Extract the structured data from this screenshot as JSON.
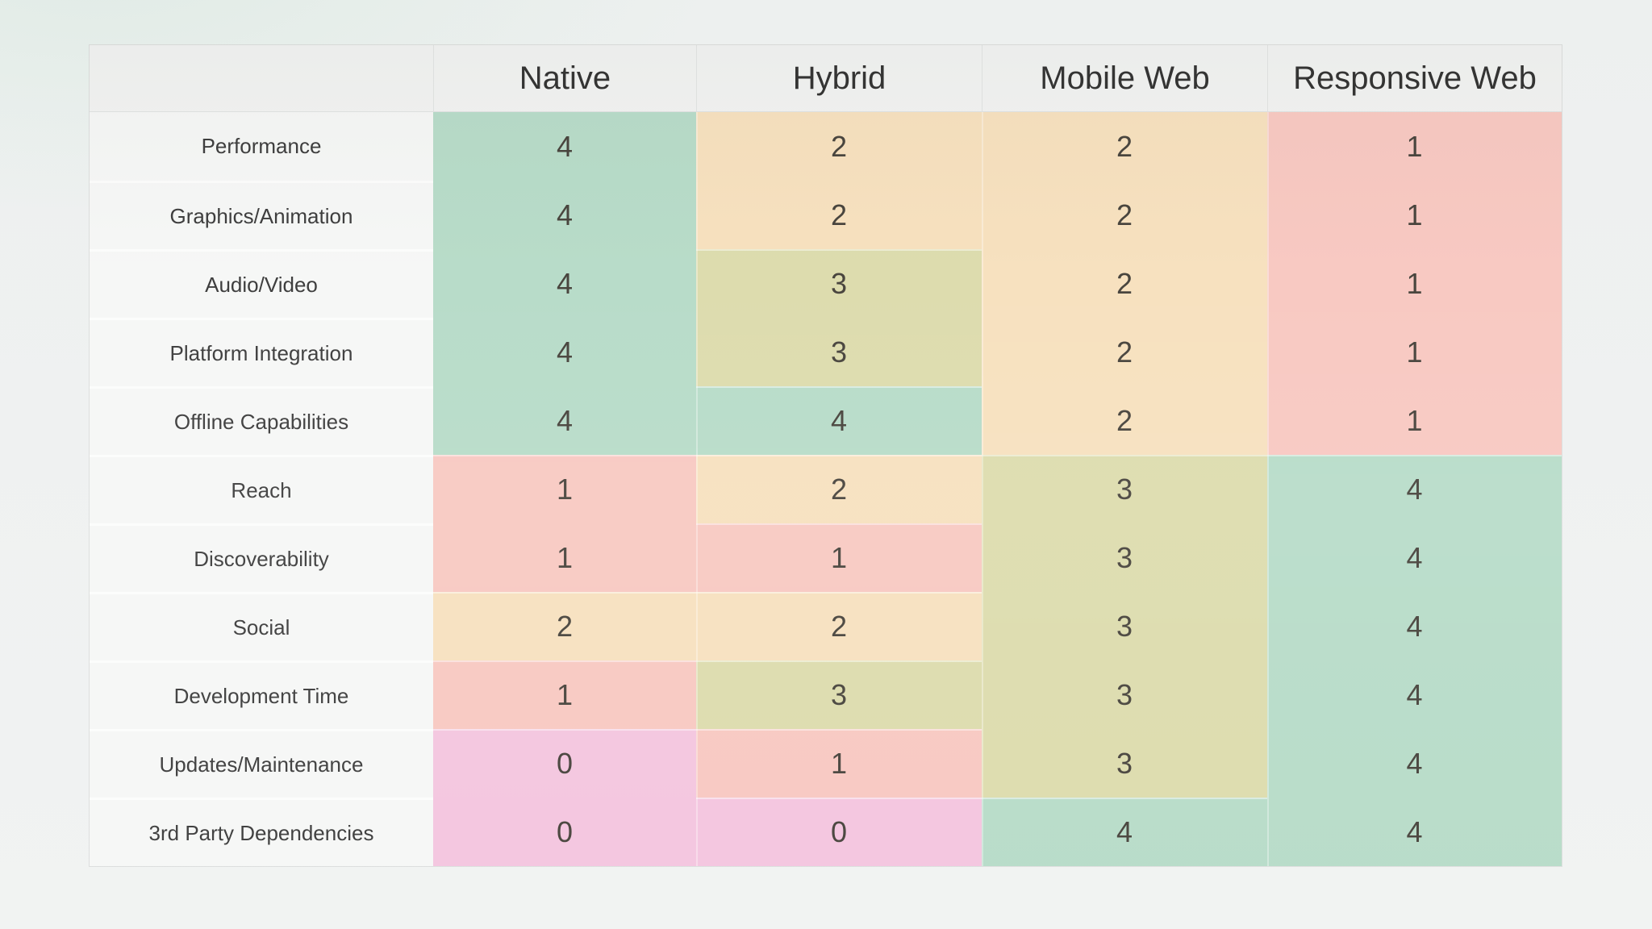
{
  "chart_data": {
    "type": "table",
    "columns": [
      "Native",
      "Hybrid",
      "Mobile Web",
      "Responsive Web"
    ],
    "rows": [
      {
        "label": "Performance",
        "values": [
          4,
          2,
          2,
          1
        ]
      },
      {
        "label": "Graphics/Animation",
        "values": [
          4,
          2,
          2,
          1
        ]
      },
      {
        "label": "Audio/Video",
        "values": [
          4,
          3,
          2,
          1
        ]
      },
      {
        "label": "Platform Integration",
        "values": [
          4,
          3,
          2,
          1
        ]
      },
      {
        "label": "Offline Capabilities",
        "values": [
          4,
          4,
          2,
          1
        ]
      },
      {
        "label": "Reach",
        "values": [
          1,
          2,
          3,
          4
        ]
      },
      {
        "label": "Discoverability",
        "values": [
          1,
          1,
          3,
          4
        ]
      },
      {
        "label": "Social",
        "values": [
          2,
          2,
          3,
          4
        ]
      },
      {
        "label": "Development Time",
        "values": [
          1,
          3,
          3,
          4
        ]
      },
      {
        "label": "Updates/Maintenance",
        "values": [
          0,
          1,
          3,
          4
        ]
      },
      {
        "label": "3rd Party Dependencies",
        "values": [
          0,
          0,
          4,
          4
        ]
      }
    ],
    "value_range": [
      0,
      4
    ],
    "score_colors": {
      "0": "#f4c6df",
      "1": "#f8c9c2",
      "2": "#f7e1bf",
      "3": "#dddcae",
      "4": "#b8dcc9"
    },
    "layout_hints": {
      "legend": "none",
      "grid": "faint-white-separators",
      "first_column_role": "criteria-labels"
    }
  }
}
